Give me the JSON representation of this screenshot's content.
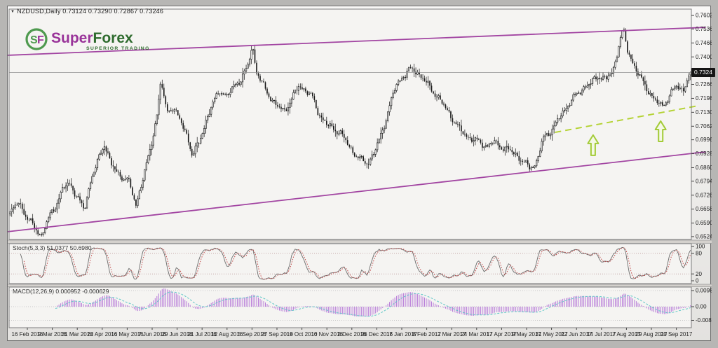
{
  "title_bar": {
    "collapse_icon": "▼",
    "text": "NZDUSD,Daily 0.73124 0.73290 0.72867 0.73246"
  },
  "logo": {
    "monogram_s": "S",
    "monogram_f": "F",
    "name_part1": "Super",
    "name_part2": "Forex",
    "tagline": "SUPERIOR TRADING",
    "purple": "#993399",
    "green": "#4f9a4f",
    "dark_green": "#2e6b2e"
  },
  "price_axis": {
    "labels": [
      "0.7602",
      "0.7536",
      "0.7468",
      "0.7400",
      "0.7334",
      "0.7266",
      "0.7198",
      "0.7130",
      "0.7062",
      "0.6996",
      "0.6928",
      "0.6860",
      "0.6794",
      "0.6726",
      "0.6658",
      "0.6590",
      "0.6524"
    ],
    "current_price_label": "0.7324"
  },
  "date_axis": {
    "labels": [
      "16 Feb 2016",
      "9 Mar 2016",
      "31 Mar 2016",
      "22 Apr 2016",
      "16 May 2016",
      "7 Jun 2016",
      "29 Jun 2016",
      "21 Jul 2016",
      "12 Aug 2016",
      "5 Sep 2016",
      "27 Sep 2016",
      "19 Oct 2016",
      "10 Nov 2016",
      "2 Dec 2016",
      "26 Dec 2016",
      "17 Jan 2017",
      "8 Feb 2017",
      "2 Mar 2017",
      "24 Mar 2017",
      "17 Apr 2017",
      "9 May 2017",
      "31 May 2017",
      "22 Jun 2017",
      "14 Jul 2017",
      "7 Aug 2017",
      "29 Aug 2017",
      "20 Sep 2017"
    ]
  },
  "stoch_panel": {
    "label": "Stoch(5,3,3) 51.0377 50.6980",
    "axis_labels": [
      100,
      80,
      20,
      0
    ],
    "level_lines": [
      80,
      20
    ],
    "k_last": 51.0377,
    "d_last": 50.698
  },
  "macd_panel": {
    "label": "MACD(12,26,9) 0.000952 -0.000629",
    "axis_values": [
      0.0098,
      0.0,
      -0.0083
    ],
    "axis_labels": [
      "0.0098",
      "0.00",
      "-0.0083"
    ],
    "macd_last": 0.000952,
    "signal_last": -0.000629
  },
  "chart_data": {
    "type": "candlestick",
    "symbol": "NZDUSD",
    "timeframe": "Daily",
    "title": "NZDUSD Daily with ascending channel, green dashed support and Stochastic / MACD indicators",
    "ohlc_current": {
      "open": 0.73124,
      "high": 0.7329,
      "low": 0.72867,
      "close": 0.73246
    },
    "y_range": [
      0.651,
      0.7633
    ],
    "x_range_dates": [
      "16 Feb 2016",
      "20 Sep 2017"
    ],
    "grid": false,
    "bars": 390,
    "close_path": [
      [
        0.0,
        0.6639
      ],
      [
        0.013,
        0.6691
      ],
      [
        0.024,
        0.6622
      ],
      [
        0.034,
        0.6577
      ],
      [
        0.046,
        0.6526
      ],
      [
        0.058,
        0.6622
      ],
      [
        0.068,
        0.6681
      ],
      [
        0.078,
        0.676
      ],
      [
        0.088,
        0.6784
      ],
      [
        0.099,
        0.6715
      ],
      [
        0.109,
        0.6653
      ],
      [
        0.119,
        0.6805
      ],
      [
        0.13,
        0.6898
      ],
      [
        0.139,
        0.6978
      ],
      [
        0.149,
        0.6874
      ],
      [
        0.16,
        0.6822
      ],
      [
        0.173,
        0.6805
      ],
      [
        0.185,
        0.6677
      ],
      [
        0.195,
        0.6805
      ],
      [
        0.206,
        0.6943
      ],
      [
        0.216,
        0.7122
      ],
      [
        0.222,
        0.7288
      ],
      [
        0.23,
        0.7129
      ],
      [
        0.24,
        0.7157
      ],
      [
        0.251,
        0.7081
      ],
      [
        0.261,
        0.7012
      ],
      [
        0.268,
        0.6916
      ],
      [
        0.278,
        0.6985
      ],
      [
        0.288,
        0.7088
      ],
      [
        0.298,
        0.7171
      ],
      [
        0.308,
        0.724
      ],
      [
        0.319,
        0.7202
      ],
      [
        0.329,
        0.7261
      ],
      [
        0.339,
        0.7288
      ],
      [
        0.349,
        0.7347
      ],
      [
        0.356,
        0.7461
      ],
      [
        0.362,
        0.7329
      ],
      [
        0.372,
        0.726
      ],
      [
        0.382,
        0.7205
      ],
      [
        0.393,
        0.7157
      ],
      [
        0.403,
        0.7136
      ],
      [
        0.413,
        0.7188
      ],
      [
        0.424,
        0.7257
      ],
      [
        0.434,
        0.724
      ],
      [
        0.444,
        0.7205
      ],
      [
        0.454,
        0.7122
      ],
      [
        0.465,
        0.7071
      ],
      [
        0.475,
        0.705
      ],
      [
        0.485,
        0.7033
      ],
      [
        0.495,
        0.6981
      ],
      [
        0.506,
        0.6929
      ],
      [
        0.516,
        0.6895
      ],
      [
        0.526,
        0.6881
      ],
      [
        0.537,
        0.6947
      ],
      [
        0.547,
        0.7033
      ],
      [
        0.557,
        0.7154
      ],
      [
        0.567,
        0.7257
      ],
      [
        0.578,
        0.7309
      ],
      [
        0.588,
        0.734
      ],
      [
        0.598,
        0.7326
      ],
      [
        0.608,
        0.7292
      ],
      [
        0.619,
        0.724
      ],
      [
        0.629,
        0.7205
      ],
      [
        0.639,
        0.7154
      ],
      [
        0.65,
        0.7102
      ],
      [
        0.66,
        0.705
      ],
      [
        0.67,
        0.7016
      ],
      [
        0.68,
        0.6998
      ],
      [
        0.691,
        0.6981
      ],
      [
        0.701,
        0.6964
      ],
      [
        0.711,
        0.6985
      ],
      [
        0.721,
        0.6964
      ],
      [
        0.732,
        0.6947
      ],
      [
        0.742,
        0.6929
      ],
      [
        0.752,
        0.6895
      ],
      [
        0.763,
        0.686
      ],
      [
        0.773,
        0.6878
      ],
      [
        0.783,
        0.6998
      ],
      [
        0.793,
        0.7033
      ],
      [
        0.804,
        0.7084
      ],
      [
        0.814,
        0.7136
      ],
      [
        0.824,
        0.7188
      ],
      [
        0.835,
        0.7222
      ],
      [
        0.845,
        0.7257
      ],
      [
        0.855,
        0.7274
      ],
      [
        0.865,
        0.7309
      ],
      [
        0.876,
        0.7292
      ],
      [
        0.886,
        0.7326
      ],
      [
        0.896,
        0.7481
      ],
      [
        0.901,
        0.7536
      ],
      [
        0.907,
        0.7433
      ],
      [
        0.917,
        0.7361
      ],
      [
        0.927,
        0.7292
      ],
      [
        0.937,
        0.724
      ],
      [
        0.948,
        0.7188
      ],
      [
        0.958,
        0.7157
      ],
      [
        0.968,
        0.7205
      ],
      [
        0.978,
        0.7257
      ],
      [
        0.989,
        0.724
      ],
      [
        1.0,
        0.73246
      ]
    ],
    "overlays": {
      "channel_upper": {
        "frac1": -0.002,
        "price1": 0.7408,
        "frac2": 1.021,
        "price2": 0.7544
      },
      "channel_lower": {
        "frac1": -0.002,
        "price1": 0.6548,
        "frac2": 1.021,
        "price2": 0.6937
      },
      "support_dashed": {
        "frac1": 0.8,
        "price1": 0.7032,
        "frac2": 1.01,
        "price2": 0.7162
      },
      "current_price_line": 0.73246,
      "arrows_up": [
        {
          "frac": 0.856,
          "tip_price": 0.7019
        },
        {
          "frac": 0.955,
          "tip_price": 0.7087
        }
      ]
    },
    "colors": {
      "candle_up": "#ffffff",
      "candle_down": "#141414",
      "candle_outline": "#141414",
      "channel": "#a245a2",
      "support": "#b4d233",
      "arrow": "#a3cb37",
      "price_line": "#8f8f8f",
      "stoch_k": "#6b6b6b",
      "stoch_d": "#c04848",
      "macd_hist": "#b678d8",
      "macd_signal": "#5fc7c7",
      "level_dotted": "#c5a8a8",
      "axis_text": "#1a1a1a",
      "panel_fill": "#f5f4f2",
      "panel_border": "#7d7d7d"
    }
  }
}
